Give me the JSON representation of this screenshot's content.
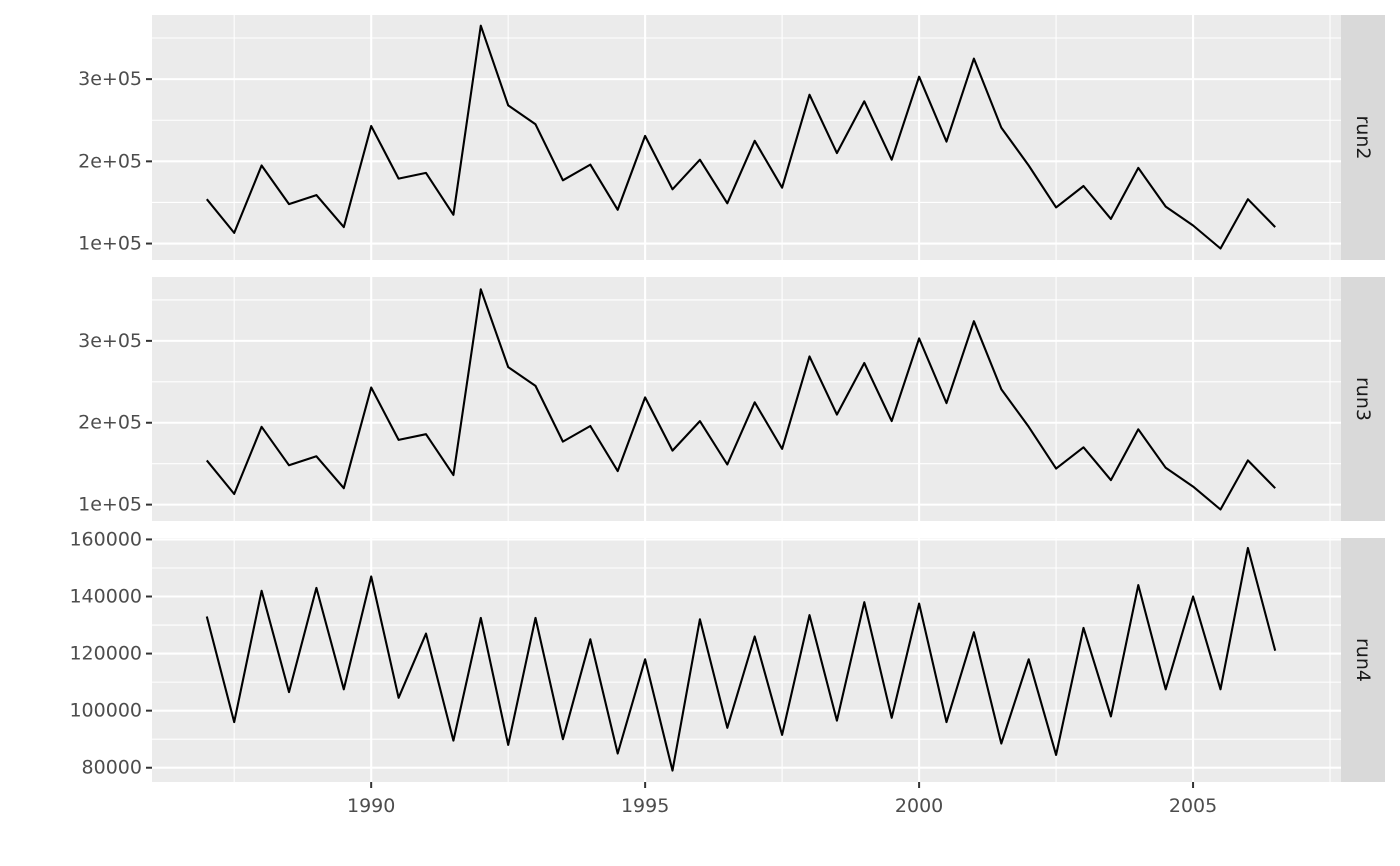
{
  "chart_data": {
    "type": "line",
    "layout": "facet-rows",
    "title": "",
    "xlabel": "",
    "ylabel": "",
    "grid": true,
    "legend": "none",
    "colors": {
      "panel": "#ebebeb",
      "strip": "#d9d9d9",
      "line": "#000000",
      "grid": "#ffffff",
      "text": "#4d4d4d"
    },
    "x": [
      1987,
      1987.5,
      1988,
      1988.5,
      1989,
      1989.5,
      1990,
      1990.5,
      1991,
      1991.5,
      1992,
      1992.5,
      1993,
      1993.5,
      1994,
      1994.5,
      1995,
      1995.5,
      1996,
      1996.5,
      1997,
      1997.5,
      1998,
      1998.5,
      1999,
      1999.5,
      2000,
      2000.5,
      2001,
      2001.5,
      2002,
      2002.5,
      2003,
      2003.5,
      2004,
      2004.5,
      2005,
      2005.5,
      2006,
      2006.5
    ],
    "xlim": [
      1986.0,
      2007.7
    ],
    "x_ticks": [
      1990,
      1995,
      2000,
      2005
    ],
    "x_tick_labels": [
      "1990",
      "1995",
      "2000",
      "2005"
    ],
    "panels": [
      {
        "strip": "run2",
        "ylim": [
          80000,
          378000
        ],
        "y_ticks": [
          100000,
          200000,
          300000
        ],
        "y_tick_labels": [
          "1e+05",
          "2e+05",
          "3e+05"
        ],
        "values": [
          154000,
          113000,
          195000,
          148000,
          159000,
          120000,
          243000,
          179000,
          186000,
          135000,
          365000,
          268000,
          245000,
          177000,
          196000,
          141000,
          231000,
          166000,
          202000,
          149000,
          225000,
          168000,
          281000,
          210000,
          273000,
          202000,
          303000,
          224000,
          325000,
          241000,
          195000,
          144000,
          170000,
          130000,
          192000,
          145000,
          122000,
          94000,
          154000,
          120000
        ]
      },
      {
        "strip": "run3",
        "ylim": [
          80000,
          378000
        ],
        "y_ticks": [
          100000,
          200000,
          300000
        ],
        "y_tick_labels": [
          "1e+05",
          "2e+05",
          "3e+05"
        ],
        "values": [
          154000,
          113000,
          195000,
          148000,
          159000,
          120000,
          243000,
          179000,
          186000,
          136000,
          363000,
          268000,
          245000,
          177000,
          196000,
          141000,
          231000,
          166000,
          202000,
          149000,
          225000,
          168000,
          281000,
          210000,
          273000,
          202000,
          303000,
          224000,
          324000,
          241000,
          195000,
          144000,
          170000,
          130000,
          192000,
          145000,
          122000,
          94000,
          154000,
          120000
        ]
      },
      {
        "strip": "run4",
        "ylim": [
          75000,
          160500
        ],
        "y_ticks": [
          80000,
          100000,
          120000,
          140000,
          160000
        ],
        "y_tick_labels": [
          "80000",
          "100000",
          "120000",
          "140000",
          "160000"
        ],
        "values": [
          133000,
          96000,
          142000,
          106500,
          143000,
          107500,
          147000,
          104500,
          127000,
          89500,
          132500,
          88000,
          132500,
          90000,
          125000,
          85000,
          118000,
          79000,
          132000,
          94000,
          126000,
          91500,
          133500,
          96500,
          138000,
          97500,
          137500,
          96000,
          127500,
          88500,
          118000,
          84500,
          129000,
          98000,
          144000,
          107500,
          140000,
          107500,
          157000,
          121000
        ]
      }
    ]
  }
}
